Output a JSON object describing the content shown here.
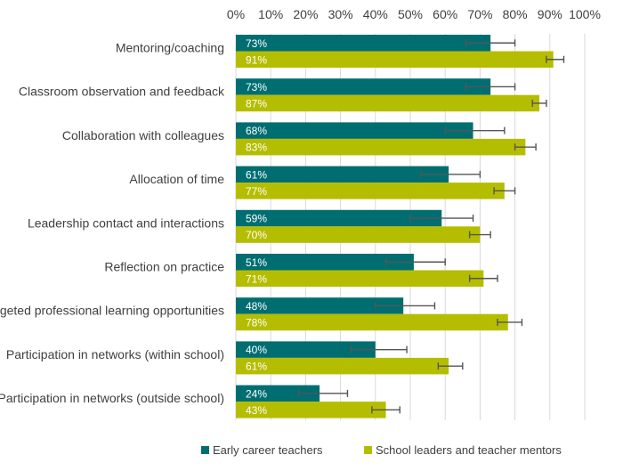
{
  "chart_data": {
    "type": "bar",
    "orientation": "horizontal",
    "categories": [
      "Mentoring/coaching",
      "Classroom observation and feedback",
      "Collaboration with colleagues",
      "Allocation of time",
      "Leadership contact and interactions",
      "Reflection on practice",
      "Targeted professional learning opportunities",
      "Participation in networks (within school)",
      "Participation in networks (outside school)"
    ],
    "series": [
      {
        "name": "Early career teachers",
        "color": "#006e71",
        "values": [
          73,
          73,
          68,
          61,
          59,
          51,
          48,
          40,
          24
        ],
        "labels": [
          "73%",
          "73%",
          "68%",
          "61%",
          "59%",
          "51%",
          "48%",
          "40%",
          "24%"
        ],
        "error_low": [
          66,
          66,
          60,
          53,
          50,
          43,
          40,
          33,
          18
        ],
        "error_high": [
          80,
          80,
          77,
          70,
          68,
          60,
          57,
          49,
          32
        ]
      },
      {
        "name": "School leaders and teacher mentors",
        "color": "#b5bd00",
        "values": [
          91,
          87,
          83,
          77,
          70,
          71,
          78,
          61,
          43
        ],
        "labels": [
          "91%",
          "87%",
          "83%",
          "77%",
          "70%",
          "71%",
          "78%",
          "61%",
          "43%"
        ],
        "error_low": [
          89,
          85,
          80,
          74,
          67,
          67,
          75,
          58,
          39
        ],
        "error_high": [
          94,
          89,
          86,
          80,
          73,
          75,
          82,
          65,
          47
        ]
      }
    ],
    "x_ticks": [
      "0%",
      "10%",
      "20%",
      "30%",
      "40%",
      "50%",
      "60%",
      "70%",
      "80%",
      "90%",
      "100%"
    ],
    "xlim": [
      0,
      100
    ],
    "grid": true,
    "legend": "bottom",
    "title": "",
    "xlabel": "",
    "ylabel": ""
  }
}
